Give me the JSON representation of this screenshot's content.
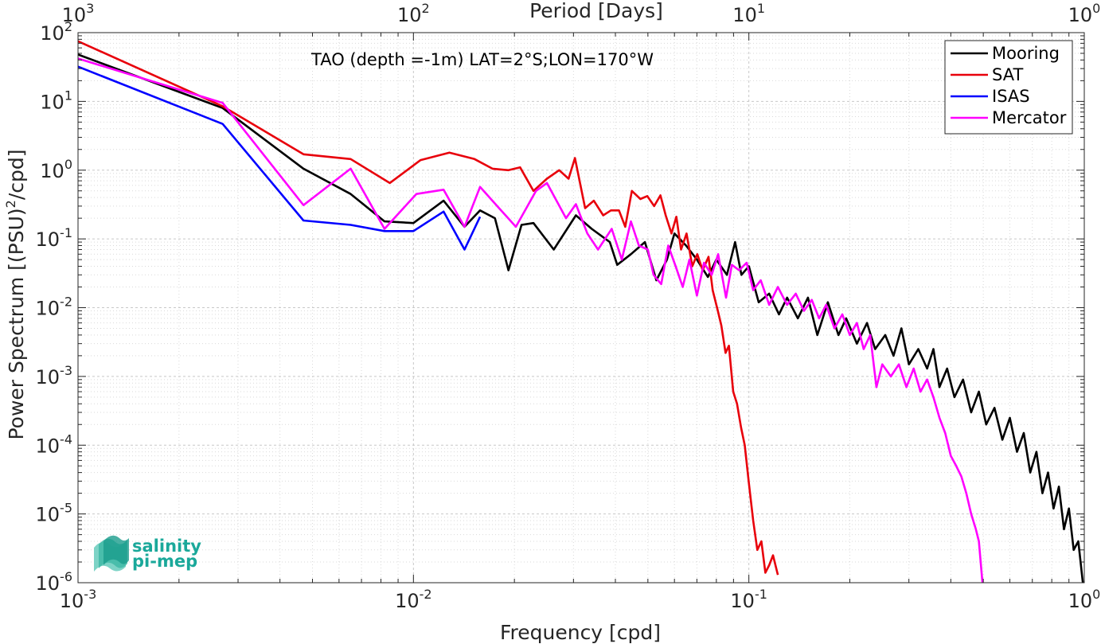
{
  "chart_data": {
    "type": "line",
    "title": "TAO (depth =-1m) LAT=2°S;LON=170°W",
    "xlabel": "Frequency [cpd]",
    "ylabel_main": "Power Spectrum [(PSU)",
    "ylabel_sup": "2",
    "ylabel_tail": "/cpd]",
    "top_xlabel": "Period [Days]",
    "xscale": "log",
    "yscale": "log",
    "xlim": [
      0.001,
      1
    ],
    "ylim": [
      1e-06,
      100
    ],
    "grid": true,
    "legend_position": "top-right",
    "x_ticks": [
      {
        "v": 0.001,
        "base": "10",
        "exp": "-3"
      },
      {
        "v": 0.01,
        "base": "10",
        "exp": "-2"
      },
      {
        "v": 0.1,
        "base": "10",
        "exp": "-1"
      },
      {
        "v": 1,
        "base": "10",
        "exp": "0"
      }
    ],
    "y_ticks": [
      {
        "v": 1e-06,
        "base": "10",
        "exp": "-6"
      },
      {
        "v": 1e-05,
        "base": "10",
        "exp": "-5"
      },
      {
        "v": 0.0001,
        "base": "10",
        "exp": "-4"
      },
      {
        "v": 0.001,
        "base": "10",
        "exp": "-3"
      },
      {
        "v": 0.01,
        "base": "10",
        "exp": "-2"
      },
      {
        "v": 0.1,
        "base": "10",
        "exp": "-1"
      },
      {
        "v": 1,
        "base": "10",
        "exp": "0"
      },
      {
        "v": 10,
        "base": "10",
        "exp": "1"
      },
      {
        "v": 100,
        "base": "10",
        "exp": "2"
      }
    ],
    "top_ticks": [
      {
        "v": 0.001,
        "base": "10",
        "exp": "3"
      },
      {
        "v": 0.01,
        "base": "10",
        "exp": "2"
      },
      {
        "v": 0.1,
        "base": "10",
        "exp": "1"
      },
      {
        "v": 1,
        "base": "10",
        "exp": "0"
      }
    ],
    "series": [
      {
        "name": "Mooring",
        "color": "#000000",
        "points": [
          [
            0.001,
            48
          ],
          [
            0.0027,
            8
          ],
          [
            0.0047,
            1.05
          ],
          [
            0.0065,
            0.45
          ],
          [
            0.0082,
            0.18
          ],
          [
            0.01,
            0.17
          ],
          [
            0.0123,
            0.36
          ],
          [
            0.0142,
            0.15
          ],
          [
            0.0158,
            0.26
          ],
          [
            0.0175,
            0.2
          ],
          [
            0.0192,
            0.035
          ],
          [
            0.021,
            0.16
          ],
          [
            0.0228,
            0.17
          ],
          [
            0.0262,
            0.07
          ],
          [
            0.0305,
            0.22
          ],
          [
            0.034,
            0.14
          ],
          [
            0.0385,
            0.09
          ],
          [
            0.0405,
            0.042
          ],
          [
            0.0445,
            0.06
          ],
          [
            0.049,
            0.09
          ],
          [
            0.053,
            0.025
          ],
          [
            0.057,
            0.05
          ],
          [
            0.06,
            0.12
          ],
          [
            0.065,
            0.08
          ],
          [
            0.07,
            0.05
          ],
          [
            0.0755,
            0.028
          ],
          [
            0.08,
            0.05
          ],
          [
            0.086,
            0.03
          ],
          [
            0.091,
            0.09
          ],
          [
            0.095,
            0.03
          ],
          [
            0.1,
            0.04
          ],
          [
            0.107,
            0.012
          ],
          [
            0.115,
            0.016
          ],
          [
            0.123,
            0.008
          ],
          [
            0.13,
            0.014
          ],
          [
            0.14,
            0.007
          ],
          [
            0.15,
            0.014
          ],
          [
            0.16,
            0.004
          ],
          [
            0.172,
            0.012
          ],
          [
            0.185,
            0.004
          ],
          [
            0.195,
            0.007
          ],
          [
            0.21,
            0.003
          ],
          [
            0.225,
            0.006
          ],
          [
            0.238,
            0.0025
          ],
          [
            0.255,
            0.004
          ],
          [
            0.27,
            0.002
          ],
          [
            0.285,
            0.005
          ],
          [
            0.3,
            0.0015
          ],
          [
            0.32,
            0.0025
          ],
          [
            0.34,
            0.0013
          ],
          [
            0.355,
            0.0025
          ],
          [
            0.37,
            0.0007
          ],
          [
            0.39,
            0.0013
          ],
          [
            0.41,
            0.0005
          ],
          [
            0.435,
            0.0009
          ],
          [
            0.46,
            0.0003
          ],
          [
            0.485,
            0.0006
          ],
          [
            0.51,
            0.0002
          ],
          [
            0.54,
            0.00035
          ],
          [
            0.57,
            0.00012
          ],
          [
            0.6,
            0.00025
          ],
          [
            0.63,
            8e-05
          ],
          [
            0.66,
            0.00015
          ],
          [
            0.69,
            4e-05
          ],
          [
            0.72,
            8e-05
          ],
          [
            0.75,
            2e-05
          ],
          [
            0.78,
            4e-05
          ],
          [
            0.81,
            1.2e-05
          ],
          [
            0.84,
            2.5e-05
          ],
          [
            0.87,
            6e-06
          ],
          [
            0.9,
            1.2e-05
          ],
          [
            0.93,
            3e-06
          ],
          [
            0.96,
            4e-06
          ],
          [
            0.99,
            1e-06
          ]
        ]
      },
      {
        "name": "SAT",
        "color": "#e8000b",
        "points": [
          [
            0.001,
            75
          ],
          [
            0.0027,
            8.5
          ],
          [
            0.0047,
            1.7
          ],
          [
            0.0065,
            1.45
          ],
          [
            0.0085,
            0.65
          ],
          [
            0.0105,
            1.4
          ],
          [
            0.0128,
            1.8
          ],
          [
            0.0152,
            1.45
          ],
          [
            0.0172,
            1.05
          ],
          [
            0.0192,
            1.0
          ],
          [
            0.0208,
            1.1
          ],
          [
            0.0228,
            0.5
          ],
          [
            0.025,
            0.75
          ],
          [
            0.0272,
            1.0
          ],
          [
            0.029,
            0.75
          ],
          [
            0.0303,
            1.5
          ],
          [
            0.0325,
            0.28
          ],
          [
            0.0345,
            0.36
          ],
          [
            0.0368,
            0.22
          ],
          [
            0.0388,
            0.26
          ],
          [
            0.041,
            0.26
          ],
          [
            0.0428,
            0.15
          ],
          [
            0.0448,
            0.5
          ],
          [
            0.0475,
            0.38
          ],
          [
            0.0498,
            0.42
          ],
          [
            0.0522,
            0.3
          ],
          [
            0.0545,
            0.43
          ],
          [
            0.0565,
            0.22
          ],
          [
            0.0588,
            0.12
          ],
          [
            0.0608,
            0.21
          ],
          [
            0.0628,
            0.07
          ],
          [
            0.0652,
            0.12
          ],
          [
            0.0678,
            0.04
          ],
          [
            0.0702,
            0.06
          ],
          [
            0.0728,
            0.035
          ],
          [
            0.0758,
            0.055
          ],
          [
            0.078,
            0.018
          ],
          [
            0.0808,
            0.009
          ],
          [
            0.0828,
            0.0055
          ],
          [
            0.0852,
            0.0022
          ],
          [
            0.0872,
            0.0028
          ],
          [
            0.0898,
            0.0006
          ],
          [
            0.0922,
            0.0004
          ],
          [
            0.0948,
            0.00018
          ],
          [
            0.0972,
            0.0001
          ],
          [
            0.1,
            2.8e-05
          ],
          [
            0.103,
            8e-06
          ],
          [
            0.106,
            3e-06
          ],
          [
            0.109,
            4e-06
          ],
          [
            0.112,
            1.4e-06
          ],
          [
            0.115,
            1.8e-06
          ],
          [
            0.118,
            2.5e-06
          ],
          [
            0.122,
            1.3e-06
          ]
        ]
      },
      {
        "name": "ISAS",
        "color": "#0000ff",
        "points": [
          [
            0.001,
            32
          ],
          [
            0.0027,
            4.7
          ],
          [
            0.0047,
            0.185
          ],
          [
            0.0065,
            0.16
          ],
          [
            0.0082,
            0.13
          ],
          [
            0.01,
            0.13
          ],
          [
            0.0123,
            0.25
          ],
          [
            0.0142,
            0.07
          ],
          [
            0.0158,
            0.21
          ]
        ]
      },
      {
        "name": "Mercator",
        "color": "#ff00ff",
        "points": [
          [
            0.001,
            42
          ],
          [
            0.0027,
            9.5
          ],
          [
            0.0047,
            0.31
          ],
          [
            0.0065,
            1.05
          ],
          [
            0.0082,
            0.14
          ],
          [
            0.0102,
            0.45
          ],
          [
            0.0123,
            0.52
          ],
          [
            0.0142,
            0.15
          ],
          [
            0.0158,
            0.57
          ],
          [
            0.018,
            0.28
          ],
          [
            0.0202,
            0.15
          ],
          [
            0.0232,
            0.5
          ],
          [
            0.025,
            0.65
          ],
          [
            0.0285,
            0.2
          ],
          [
            0.0305,
            0.32
          ],
          [
            0.033,
            0.12
          ],
          [
            0.0355,
            0.07
          ],
          [
            0.039,
            0.14
          ],
          [
            0.0418,
            0.05
          ],
          [
            0.0445,
            0.18
          ],
          [
            0.047,
            0.08
          ],
          [
            0.05,
            0.07
          ],
          [
            0.052,
            0.03
          ],
          [
            0.0548,
            0.022
          ],
          [
            0.0575,
            0.08
          ],
          [
            0.0605,
            0.04
          ],
          [
            0.0635,
            0.02
          ],
          [
            0.0665,
            0.05
          ],
          [
            0.07,
            0.015
          ],
          [
            0.0735,
            0.045
          ],
          [
            0.0775,
            0.03
          ],
          [
            0.081,
            0.06
          ],
          [
            0.0855,
            0.014
          ],
          [
            0.089,
            0.042
          ],
          [
            0.0935,
            0.035
          ],
          [
            0.0985,
            0.045
          ],
          [
            0.103,
            0.018
          ],
          [
            0.1085,
            0.025
          ],
          [
            0.115,
            0.011
          ],
          [
            0.122,
            0.02
          ],
          [
            0.13,
            0.011
          ],
          [
            0.138,
            0.016
          ],
          [
            0.146,
            0.009
          ],
          [
            0.154,
            0.013
          ],
          [
            0.162,
            0.007
          ],
          [
            0.17,
            0.011
          ],
          [
            0.18,
            0.005
          ],
          [
            0.19,
            0.008
          ],
          [
            0.2,
            0.004
          ],
          [
            0.21,
            0.006
          ],
          [
            0.22,
            0.0025
          ],
          [
            0.23,
            0.004
          ],
          [
            0.24,
            0.0007
          ],
          [
            0.25,
            0.0015
          ],
          [
            0.265,
            0.001
          ],
          [
            0.28,
            0.0015
          ],
          [
            0.295,
            0.0007
          ],
          [
            0.31,
            0.0013
          ],
          [
            0.325,
            0.0006
          ],
          [
            0.34,
            0.0009
          ],
          [
            0.355,
            0.0005
          ],
          [
            0.37,
            0.00025
          ],
          [
            0.385,
            0.00015
          ],
          [
            0.4,
            7e-05
          ],
          [
            0.415,
            5e-05
          ],
          [
            0.43,
            3.5e-05
          ],
          [
            0.445,
            2e-05
          ],
          [
            0.46,
            1e-05
          ],
          [
            0.475,
            6e-06
          ],
          [
            0.485,
            4e-06
          ],
          [
            0.492,
            1.8e-06
          ],
          [
            0.497,
            1e-06
          ]
        ]
      }
    ],
    "logo": {
      "line1": "salinity",
      "line2": "pi-mep"
    }
  }
}
